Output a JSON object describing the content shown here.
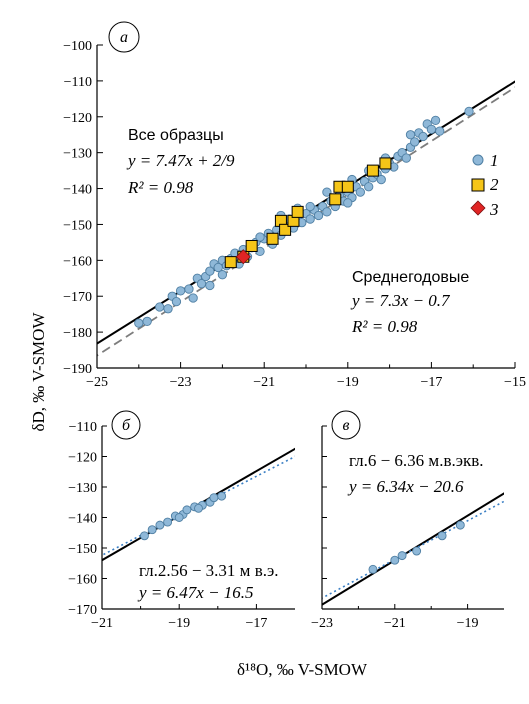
{
  "figure": {
    "ylabel": "δD, ‰ V-SMOW",
    "xlabel": "δ¹⁸O, ‰ V-SMOW"
  },
  "chart_data": [
    {
      "panel": "а",
      "type": "scatter",
      "xlim": [
        -25,
        -15
      ],
      "ylim": [
        -190,
        -100
      ],
      "xticks": [
        -25,
        -23,
        -21,
        -19,
        -17,
        -15
      ],
      "yticks": [
        -190,
        -180,
        -170,
        -160,
        -150,
        -140,
        -130,
        -120,
        -110,
        -100
      ],
      "xtick_labels": [
        "−25",
        "−23",
        "−21",
        "−19",
        "−17",
        "−15"
      ],
      "ytick_labels": [
        "−190",
        "−180",
        "−170",
        "−160",
        "−150",
        "−140",
        "−130",
        "−120",
        "−110",
        "−100"
      ],
      "annotations": [
        {
          "title": "Все образцы",
          "eq": "y = 7.47x + 2/9",
          "r2": "R² = 0.98"
        },
        {
          "title": "Среднегодовые",
          "eq": "y = 7.3x − 0.7",
          "r2": "R² = 0.98"
        }
      ],
      "legend": [
        "1",
        "2",
        "3"
      ],
      "lines": [
        {
          "kind": "solid",
          "slope": 7.3,
          "intercept": -0.7
        },
        {
          "kind": "dashed",
          "slope": 7.47,
          "intercept": 0.2222
        }
      ],
      "series": [
        {
          "name": "1",
          "marker": "circle",
          "color": "#8fb8d8",
          "points": [
            [
              -24.0,
              -177.5
            ],
            [
              -23.8,
              -177
            ],
            [
              -23.5,
              -173
            ],
            [
              -23.3,
              -173.5
            ],
            [
              -23.2,
              -170
            ],
            [
              -23.1,
              -171.5
            ],
            [
              -23.0,
              -168.5
            ],
            [
              -22.8,
              -168
            ],
            [
              -22.7,
              -170.5
            ],
            [
              -22.6,
              -165
            ],
            [
              -22.5,
              -166.5
            ],
            [
              -22.4,
              -164.5
            ],
            [
              -22.3,
              -163
            ],
            [
              -22.2,
              -161
            ],
            [
              -22.1,
              -162
            ],
            [
              -22.0,
              -164
            ],
            [
              -22.0,
              -160
            ],
            [
              -21.9,
              -161.5
            ],
            [
              -21.8,
              -159.5
            ],
            [
              -21.7,
              -158
            ],
            [
              -21.6,
              -161
            ],
            [
              -21.5,
              -157
            ],
            [
              -21.4,
              -159
            ],
            [
              -21.3,
              -156.5
            ],
            [
              -21.2,
              -155
            ],
            [
              -21.1,
              -157.5
            ],
            [
              -21.0,
              -154
            ],
            [
              -20.9,
              -152.5
            ],
            [
              -20.8,
              -155.5
            ],
            [
              -20.7,
              -151.5
            ],
            [
              -20.6,
              -153
            ],
            [
              -20.5,
              -150.5
            ],
            [
              -20.4,
              -148.5
            ],
            [
              -20.3,
              -151
            ],
            [
              -20.2,
              -148
            ],
            [
              -20.1,
              -149.5
            ],
            [
              -20.0,
              -147
            ],
            [
              -19.9,
              -148.5
            ],
            [
              -19.8,
              -146
            ],
            [
              -19.7,
              -147.5
            ],
            [
              -19.6,
              -145
            ],
            [
              -19.5,
              -146.5
            ],
            [
              -19.4,
              -143.5
            ],
            [
              -19.3,
              -145
            ],
            [
              -19.2,
              -142
            ],
            [
              -19.1,
              -143.5
            ],
            [
              -19.0,
              -141
            ],
            [
              -18.9,
              -142.5
            ],
            [
              -18.8,
              -139.5
            ],
            [
              -18.7,
              -141
            ],
            [
              -18.6,
              -138
            ],
            [
              -18.5,
              -139.5
            ],
            [
              -18.4,
              -137
            ],
            [
              -18.3,
              -136
            ],
            [
              -18.2,
              -137.5
            ],
            [
              -18.1,
              -134.5
            ],
            [
              -18.0,
              -133
            ],
            [
              -17.9,
              -134
            ],
            [
              -17.8,
              -131
            ],
            [
              -17.7,
              -130
            ],
            [
              -17.6,
              -131.5
            ],
            [
              -17.5,
              -128.5
            ],
            [
              -17.4,
              -127
            ],
            [
              -17.3,
              -124.5
            ],
            [
              -17.2,
              -125.5
            ],
            [
              -17.1,
              -122
            ],
            [
              -17.0,
              -123.5
            ],
            [
              -16.9,
              -121
            ],
            [
              -16.8,
              -124
            ],
            [
              -16.1,
              -118.5
            ],
            [
              -17.5,
              -125
            ],
            [
              -18.9,
              -137.5
            ],
            [
              -19.9,
              -145
            ],
            [
              -21.1,
              -153.5
            ],
            [
              -20.6,
              -147.5
            ],
            [
              -19.5,
              -141
            ],
            [
              -18.1,
              -131.5
            ],
            [
              -22.3,
              -167
            ],
            [
              -20.2,
              -145.5
            ],
            [
              -19.0,
              -144
            ],
            [
              -18.5,
              -135
            ]
          ]
        },
        {
          "name": "2",
          "marker": "square",
          "color": "#f5c518",
          "points": [
            [
              -21.8,
              -160.5
            ],
            [
              -21.5,
              -159
            ],
            [
              -21.3,
              -156
            ],
            [
              -20.8,
              -154
            ],
            [
              -20.6,
              -149
            ],
            [
              -20.5,
              -151.5
            ],
            [
              -20.3,
              -149
            ],
            [
              -20.2,
              -146.5
            ],
            [
              -19.3,
              -143
            ],
            [
              -19.2,
              -139.5
            ],
            [
              -19.0,
              -139.5
            ],
            [
              -18.4,
              -135
            ],
            [
              -18.1,
              -133
            ]
          ]
        },
        {
          "name": "3",
          "marker": "diamond",
          "color": "#e02424",
          "points": [
            [
              -21.5,
              -159
            ]
          ]
        }
      ]
    },
    {
      "panel": "б",
      "type": "scatter",
      "xlim": [
        -21,
        -16
      ],
      "ylim": [
        -170,
        -110
      ],
      "xticks": [
        -21,
        -19,
        -17
      ],
      "yticks": [
        -170,
        -160,
        -150,
        -140,
        -130,
        -120,
        -110
      ],
      "xtick_labels": [
        "−21",
        "−19",
        "−17"
      ],
      "ytick_labels": [
        "−170",
        "−160",
        "−150",
        "−140",
        "−130",
        "−120",
        "−110"
      ],
      "annotations": [
        {
          "title": "гл.2.56 − 3.31 м в.э.",
          "eq": "y = 6.47x − 16.5"
        }
      ],
      "lines": [
        {
          "kind": "solid",
          "slope": 7.3,
          "intercept": -0.7
        },
        {
          "kind": "dotted",
          "slope": 6.47,
          "intercept": -16.5
        }
      ],
      "series": [
        {
          "name": "1",
          "marker": "circle",
          "color": "#8fb8d8",
          "points": [
            [
              -19.9,
              -146
            ],
            [
              -19.7,
              -144
            ],
            [
              -19.5,
              -142.5
            ],
            [
              -19.3,
              -141.5
            ],
            [
              -19.1,
              -139.5
            ],
            [
              -18.9,
              -139
            ],
            [
              -18.8,
              -137.5
            ],
            [
              -18.6,
              -136.5
            ],
            [
              -18.4,
              -136
            ],
            [
              -18.2,
              -135
            ],
            [
              -18.1,
              -133.5
            ],
            [
              -17.9,
              -133
            ],
            [
              -19.0,
              -140
            ],
            [
              -18.5,
              -137
            ]
          ]
        }
      ]
    },
    {
      "panel": "в",
      "type": "scatter",
      "xlim": [
        -23,
        -18
      ],
      "ylim": [
        -170,
        -110
      ],
      "xticks": [
        -23,
        -21,
        -19
      ],
      "yticks": [
        -170,
        -160,
        -150,
        -140,
        -130,
        -120,
        -110
      ],
      "xtick_labels": [
        "−23",
        "−21",
        "−19"
      ],
      "annotations": [
        {
          "title": "гл.6 − 6.36 м.в.экв.",
          "eq": "y = 6.34x − 20.6"
        }
      ],
      "lines": [
        {
          "kind": "solid",
          "slope": 7.3,
          "intercept": -0.7
        },
        {
          "kind": "dotted",
          "slope": 6.34,
          "intercept": -20.6
        }
      ],
      "series": [
        {
          "name": "1",
          "marker": "circle",
          "color": "#8fb8d8",
          "points": [
            [
              -21.6,
              -157
            ],
            [
              -21.0,
              -154
            ],
            [
              -20.8,
              -152.5
            ],
            [
              -20.4,
              -151
            ],
            [
              -19.7,
              -146
            ],
            [
              -19.2,
              -142.5
            ]
          ]
        }
      ]
    }
  ]
}
